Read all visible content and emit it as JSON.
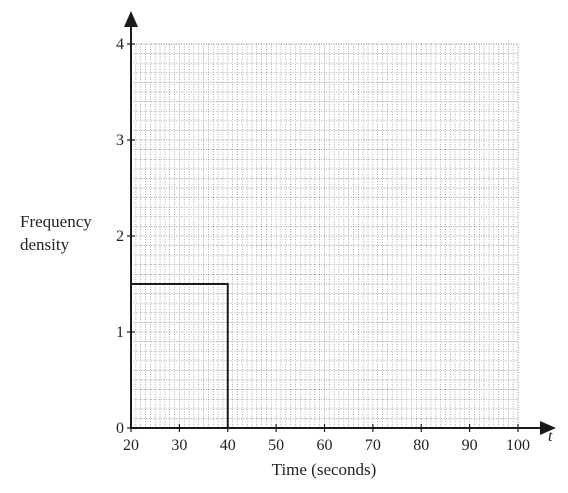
{
  "chart_data": {
    "type": "bar",
    "title": "",
    "xlabel": "Time (seconds)",
    "ylabel": [
      "Frequency",
      "density"
    ],
    "x_axis_symbol": "t",
    "xlim": [
      20,
      100
    ],
    "ylim": [
      0,
      4
    ],
    "x_ticks": [
      "20",
      "30",
      "40",
      "50",
      "60",
      "70",
      "80",
      "90",
      "100"
    ],
    "y_ticks": [
      "0",
      "1",
      "2",
      "3",
      "4"
    ],
    "grid": true,
    "bars": [
      {
        "x_start": 20,
        "x_end": 40,
        "frequency_density": 1.5
      }
    ]
  }
}
